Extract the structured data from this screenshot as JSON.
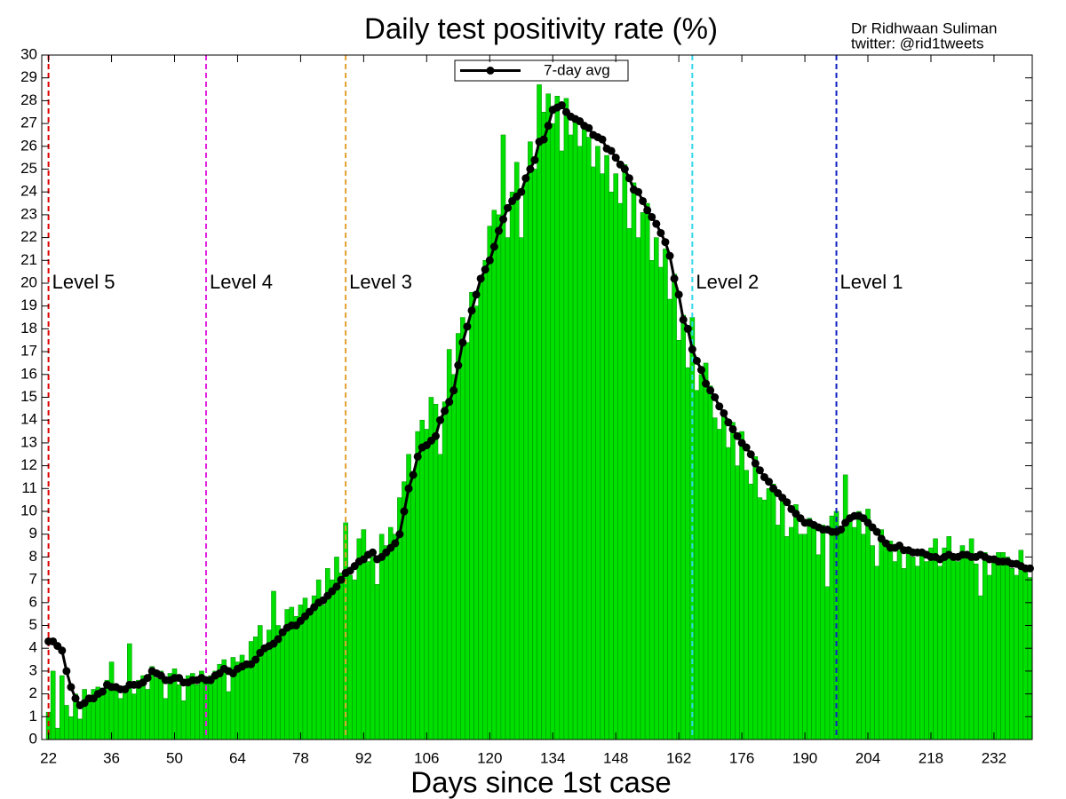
{
  "chart_data": {
    "type": "bar",
    "title": "Daily test positivity rate (%)",
    "attribution": [
      "Dr Ridhwaan Suliman",
      "twitter: @rid1tweets"
    ],
    "xlabel": "Days since 1st case",
    "color": "#00e000",
    "edgecolor": "#008800",
    "x": [
      22,
      23,
      24,
      25,
      26,
      27,
      28,
      29,
      30,
      31,
      32,
      33,
      34,
      35,
      36,
      37,
      38,
      39,
      40,
      41,
      42,
      43,
      44,
      45,
      46,
      47,
      48,
      49,
      50,
      51,
      52,
      53,
      54,
      55,
      56,
      57,
      58,
      59,
      60,
      61,
      62,
      63,
      64,
      65,
      66,
      67,
      68,
      69,
      70,
      71,
      72,
      73,
      74,
      75,
      76,
      77,
      78,
      79,
      80,
      81,
      82,
      83,
      84,
      85,
      86,
      87,
      88,
      89,
      90,
      91,
      92,
      93,
      94,
      95,
      96,
      97,
      98,
      99,
      100,
      101,
      102,
      103,
      104,
      105,
      106,
      107,
      108,
      109,
      110,
      111,
      112,
      113,
      114,
      115,
      116,
      117,
      118,
      119,
      120,
      121,
      122,
      123,
      124,
      125,
      126,
      127,
      128,
      129,
      130,
      131,
      132,
      133,
      134,
      135,
      136,
      137,
      138,
      139,
      140,
      141,
      142,
      143,
      144,
      145,
      146,
      147,
      148,
      149,
      150,
      151,
      152,
      153,
      154,
      155,
      156,
      157,
      158,
      159,
      160,
      161,
      162,
      163,
      164,
      165,
      166,
      167,
      168,
      169,
      170,
      171,
      172,
      173,
      174,
      175,
      176,
      177,
      178,
      179,
      180,
      181,
      182,
      183,
      184,
      185,
      186,
      187,
      188,
      189,
      190,
      191,
      192,
      193,
      194,
      195,
      196,
      197,
      198,
      199,
      200,
      201,
      202,
      203,
      204,
      205,
      206,
      207,
      208,
      209,
      210,
      211,
      212,
      213,
      214,
      215,
      216,
      217,
      218,
      219,
      220,
      221,
      222,
      223,
      224,
      225,
      226,
      227,
      228,
      229,
      230,
      231,
      232,
      233,
      234,
      235,
      236,
      237,
      238,
      239,
      240
    ],
    "values": [
      1.2,
      3.0,
      0.5,
      2.8,
      1.5,
      1.0,
      2.0,
      0.9,
      2.2,
      1.7,
      2.2,
      2.3,
      2.0,
      2.6,
      3.4,
      2.4,
      1.8,
      2.3,
      4.2,
      2.0,
      2.6,
      2.8,
      2.2,
      3.2,
      2.7,
      3.0,
      1.8,
      2.9,
      3.1,
      2.4,
      1.7,
      2.8,
      2.9,
      2.4,
      3.0,
      2.6,
      2.8,
      3.0,
      3.3,
      3.5,
      2.1,
      3.6,
      3.4,
      3.7,
      3.4,
      4.3,
      4.5,
      5.0,
      3.9,
      4.8,
      6.5,
      5.0,
      4.7,
      5.7,
      5.8,
      5.4,
      5.9,
      6.2,
      5.6,
      6.3,
      7.0,
      5.9,
      7.5,
      7.0,
      8.0,
      7.3,
      9.5,
      7.2,
      7.0,
      8.8,
      9.2,
      7.8,
      8.0,
      6.8,
      9.0,
      8.5,
      9.3,
      9.0,
      10.6,
      11.3,
      12.5,
      11.5,
      13.5,
      14.0,
      13.6,
      15.0,
      14.7,
      12.5,
      14.8,
      17.1,
      16.0,
      17.8,
      18.5,
      17.4,
      19.6,
      19.0,
      20.3,
      21.0,
      22.5,
      23.2,
      23.0,
      26.5,
      22.0,
      24.0,
      25.3,
      22.0,
      24.5,
      26.2,
      25.0,
      28.7,
      27.5,
      28.3,
      27.0,
      28.2,
      25.8,
      28.1,
      26.5,
      27.2,
      26.0,
      27.0,
      26.4,
      25.1,
      26.0,
      24.8,
      25.6,
      24.0,
      24.8,
      23.5,
      25.2,
      22.4,
      24.4,
      22.0,
      23.1,
      23.5,
      21.0,
      22.0,
      20.7,
      21.5,
      19.3,
      20.4,
      17.5,
      18.6,
      16.3,
      18.5,
      15.3,
      16.0,
      16.5,
      15.5,
      14.1,
      13.6,
      14.4,
      12.8,
      13.9,
      12.0,
      13.5,
      11.8,
      11.2,
      12.4,
      10.6,
      10.5,
      11.0,
      11.2,
      9.4,
      10.7,
      8.9,
      9.3,
      10.3,
      9.0,
      9.0,
      9.7,
      9.5,
      8.1,
      9.4,
      6.7,
      9.8,
      10.0,
      9.3,
      11.6,
      9.7,
      9.3,
      10.0,
      9.0,
      10.1,
      8.5,
      7.6,
      9.2,
      8.5,
      8.7,
      7.8,
      8.3,
      7.5,
      8.3,
      8.0,
      7.6,
      8.2,
      7.8,
      8.4,
      8.8,
      7.6,
      8.4,
      8.9,
      7.9,
      7.8,
      8.5,
      8.2,
      8.8,
      7.7,
      6.3,
      8.2,
      7.2,
      7.8,
      8.2,
      8.2,
      8.0,
      7.5,
      7.2,
      8.3,
      7.6,
      7.1
    ],
    "series": [
      {
        "name": "7-day avg",
        "type": "line",
        "color": "#000000",
        "values": [
          4.3,
          4.3,
          4.1,
          3.9,
          3.0,
          2.3,
          1.8,
          1.5,
          1.6,
          1.8,
          1.8,
          2.0,
          2.1,
          2.4,
          2.3,
          2.3,
          2.2,
          2.2,
          2.4,
          2.4,
          2.4,
          2.5,
          2.7,
          3.0,
          2.9,
          2.8,
          2.6,
          2.6,
          2.7,
          2.7,
          2.5,
          2.5,
          2.6,
          2.6,
          2.7,
          2.6,
          2.6,
          2.8,
          2.9,
          3.1,
          3.0,
          2.9,
          3.1,
          3.2,
          3.3,
          3.3,
          3.5,
          3.8,
          4.0,
          4.1,
          4.2,
          4.4,
          4.7,
          4.9,
          5.0,
          5.0,
          5.2,
          5.4,
          5.6,
          5.8,
          6.0,
          6.1,
          6.3,
          6.5,
          6.7,
          7.0,
          7.3,
          7.4,
          7.6,
          7.8,
          7.9,
          8.1,
          8.2,
          7.9,
          8.0,
          8.2,
          8.4,
          8.6,
          9.0,
          10.0,
          11.0,
          11.6,
          12.4,
          12.8,
          12.9,
          13.1,
          13.3,
          14.0,
          14.4,
          14.8,
          15.3,
          16.4,
          17.4,
          18.1,
          18.8,
          19.5,
          20.2,
          20.6,
          21.0,
          21.6,
          22.3,
          22.8,
          23.3,
          23.6,
          23.8,
          24.0,
          24.6,
          25.0,
          25.4,
          26.2,
          26.3,
          26.9,
          27.6,
          27.7,
          27.8,
          27.5,
          27.3,
          27.2,
          27.1,
          26.9,
          26.8,
          26.5,
          26.4,
          26.3,
          25.9,
          25.8,
          25.5,
          25.2,
          25.0,
          24.6,
          24.1,
          24.0,
          23.6,
          23.2,
          22.9,
          22.6,
          22.2,
          21.8,
          21.2,
          20.2,
          19.5,
          18.4,
          18.0,
          17.1,
          16.6,
          16.2,
          15.6,
          15.3,
          15.0,
          14.6,
          14.3,
          13.9,
          13.6,
          13.3,
          13.0,
          12.8,
          12.5,
          12.1,
          11.8,
          11.5,
          11.3,
          11.0,
          10.8,
          10.6,
          10.4,
          10.1,
          9.9,
          9.7,
          9.5,
          9.5,
          9.4,
          9.3,
          9.2,
          9.2,
          9.1,
          9.1,
          9.2,
          9.5,
          9.7,
          9.8,
          9.8,
          9.7,
          9.5,
          9.3,
          9.1,
          8.8,
          8.6,
          8.4,
          8.4,
          8.5,
          8.3,
          8.3,
          8.2,
          8.2,
          8.2,
          8.1,
          8.0,
          8.0,
          7.9,
          8.0,
          8.1,
          8.0,
          8.0,
          8.1,
          8.1,
          8.0,
          8.0,
          8.1,
          8.0,
          7.9,
          7.9,
          7.8,
          7.8,
          7.8,
          7.7,
          7.7,
          7.6,
          7.5,
          7.5
        ]
      }
    ],
    "levels": [
      {
        "x": 22,
        "label": "Level 5",
        "color": "#e00000",
        "label_y": 20
      },
      {
        "x": 57,
        "label": "Level 4",
        "color": "#e020e0",
        "label_y": 20
      },
      {
        "x": 88,
        "label": "Level 3",
        "color": "#e0a030",
        "label_y": 20
      },
      {
        "x": 165,
        "label": "Level 2",
        "color": "#30d8e8",
        "label_y": 20
      },
      {
        "x": 197,
        "label": "Level 1",
        "color": "#1020c0",
        "label_y": 20
      }
    ],
    "xlim": [
      20.5,
      240.5
    ],
    "ylim": [
      0,
      30
    ],
    "xticks": [
      22,
      36,
      50,
      64,
      78,
      92,
      106,
      120,
      134,
      148,
      162,
      176,
      190,
      204,
      218,
      232
    ],
    "yticks": [
      0,
      1,
      2,
      3,
      4,
      5,
      6,
      7,
      8,
      9,
      10,
      11,
      12,
      13,
      14,
      15,
      16,
      17,
      18,
      19,
      20,
      21,
      22,
      23,
      24,
      25,
      26,
      27,
      28,
      29,
      30
    ],
    "legend": "top-center"
  }
}
